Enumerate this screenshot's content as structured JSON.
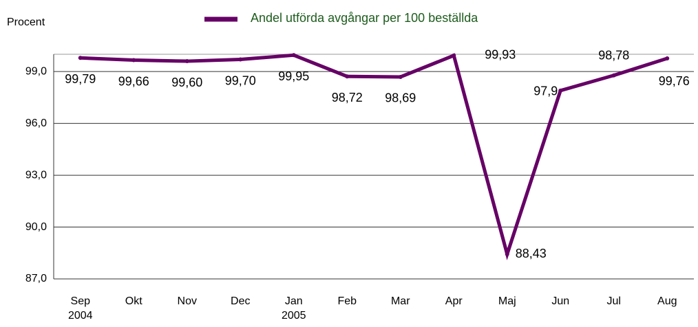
{
  "chart_data": {
    "type": "line",
    "legend_label": "Andel utförda avgångar per 100 beställda",
    "y_axis_label": "Procent",
    "categories": [
      "Sep 2004",
      "Okt",
      "Nov",
      "Dec",
      "Jan 2005",
      "Feb",
      "Mar",
      "Apr",
      "Maj",
      "Jun",
      "Jul",
      "Aug"
    ],
    "series": [
      {
        "name": "Andel utförda avgångar per 100 beställda",
        "color": "#660066",
        "values": [
          99.79,
          99.66,
          99.6,
          99.7,
          99.95,
          98.72,
          98.69,
          99.93,
          88.43,
          97.9,
          98.78,
          99.76
        ],
        "value_labels": [
          "99,79",
          "99,66",
          "99,60",
          "99,70",
          "99,95",
          "98,72",
          "98,69",
          "99,93",
          "88,43",
          "97,9",
          "98,78",
          "99,76"
        ]
      }
    ],
    "ylim": [
      87,
      100
    ],
    "yticks": [
      {
        "value": 87,
        "label": "87,0"
      },
      {
        "value": 90,
        "label": "90,0"
      },
      {
        "value": 93,
        "label": "93,0"
      },
      {
        "value": 96,
        "label": "96,0"
      },
      {
        "value": 99,
        "label": "99,0"
      }
    ],
    "grid": true
  }
}
